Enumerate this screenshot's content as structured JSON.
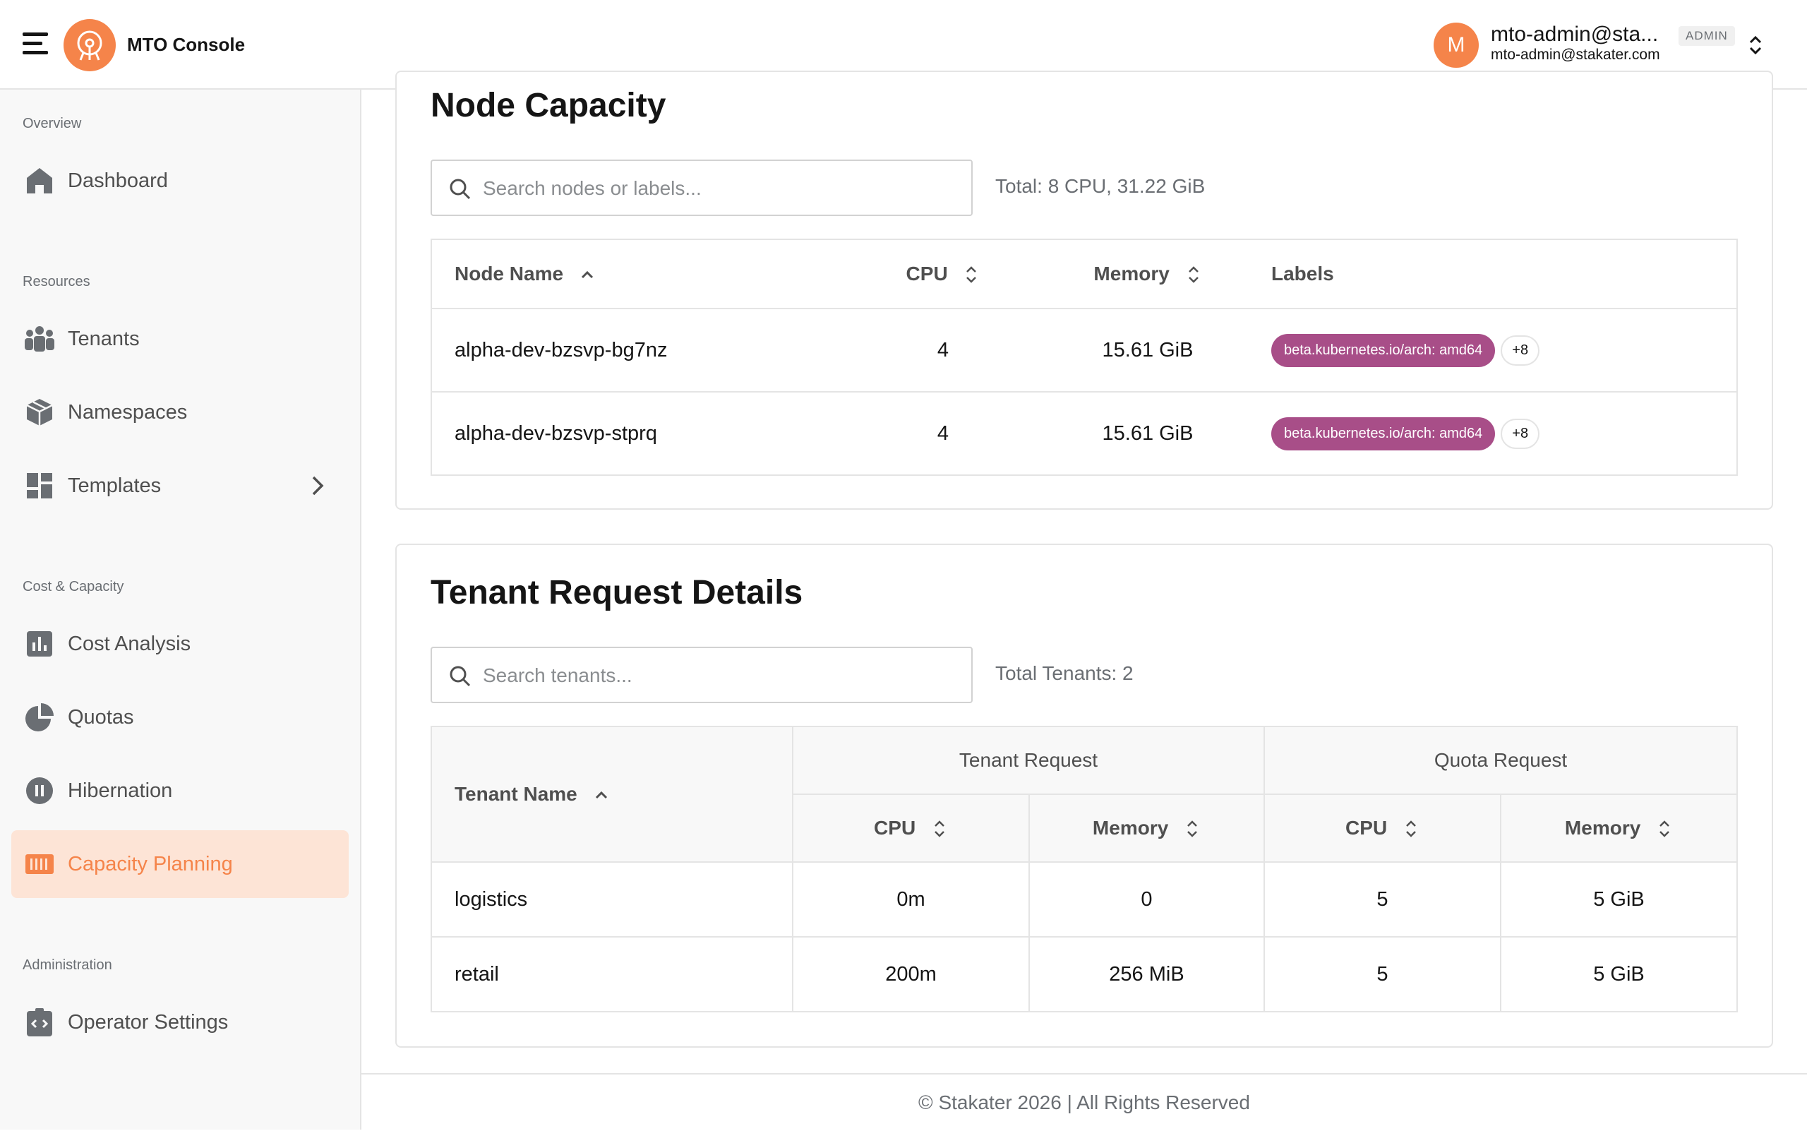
{
  "header": {
    "app_title": "MTO Console",
    "avatar_initial": "M",
    "user_name": "mto-admin@sta...",
    "role_badge": "ADMIN",
    "user_email": "mto-admin@stakater.com"
  },
  "sidebar": {
    "sections": [
      {
        "label": "Overview"
      },
      {
        "label": "Resources"
      },
      {
        "label": "Cost & Capacity"
      },
      {
        "label": "Administration"
      }
    ],
    "items": [
      {
        "label": "Dashboard",
        "icon": "home-icon"
      },
      {
        "label": "Tenants",
        "icon": "users-icon"
      },
      {
        "label": "Namespaces",
        "icon": "cube-icon"
      },
      {
        "label": "Templates",
        "icon": "grid-icon"
      },
      {
        "label": "Cost Analysis",
        "icon": "bar-chart-icon"
      },
      {
        "label": "Quotas",
        "icon": "pie-chart-icon"
      },
      {
        "label": "Hibernation",
        "icon": "pause-icon"
      },
      {
        "label": "Capacity Planning",
        "icon": "capacity-icon",
        "active": true
      },
      {
        "label": "Operator Settings",
        "icon": "code-clipboard-icon"
      }
    ]
  },
  "node_capacity": {
    "title": "Node Capacity",
    "search_placeholder": "Search nodes or labels...",
    "total": "Total: 8 CPU, 31.22 GiB",
    "columns": [
      "Node Name",
      "CPU",
      "Memory",
      "Labels"
    ],
    "rows": [
      {
        "name": "alpha-dev-bzsvp-bg7nz",
        "cpu": "4",
        "memory": "15.61 GiB",
        "label": "beta.kubernetes.io/arch: amd64",
        "more": "+8"
      },
      {
        "name": "alpha-dev-bzsvp-stprq",
        "cpu": "4",
        "memory": "15.61 GiB",
        "label": "beta.kubernetes.io/arch: amd64",
        "more": "+8"
      }
    ]
  },
  "tenant_requests": {
    "title": "Tenant Request Details",
    "search_placeholder": "Search tenants...",
    "total": "Total Tenants: 2",
    "col_tenant_name": "Tenant Name",
    "group_tenant_request": "Tenant Request",
    "group_quota_request": "Quota Request",
    "col_cpu": "CPU",
    "col_memory": "Memory",
    "rows": [
      {
        "name": "logistics",
        "req_cpu": "0m",
        "req_memory": "0",
        "quota_cpu": "5",
        "quota_memory": "5 GiB"
      },
      {
        "name": "retail",
        "req_cpu": "200m",
        "req_memory": "256 MiB",
        "quota_cpu": "5",
        "quota_memory": "5 GiB"
      }
    ]
  },
  "footer": {
    "text": "© Stakater 2026 | All Rights Reserved"
  },
  "colors": {
    "accent": "#f5844a",
    "active_bg": "#fde4d6",
    "label_chip": "#a84e88"
  }
}
